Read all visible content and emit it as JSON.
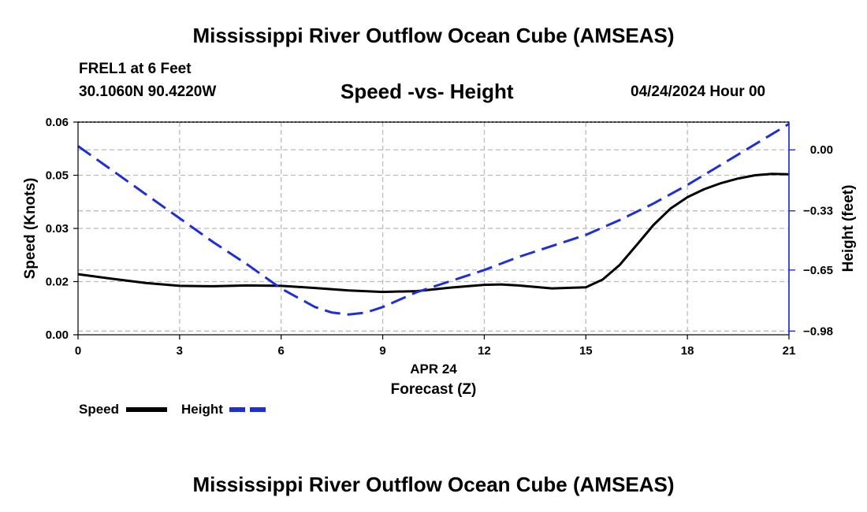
{
  "header": {
    "title": "Mississippi River Outflow Ocean Cube (AMSEAS)",
    "station": "FREL1 at 6 Feet",
    "coordinates": "30.1060N  90.4220W",
    "subtitle": "Speed -vs- Height",
    "datestamp": "04/24/2024 Hour 00"
  },
  "footer": {
    "title": "Mississippi River Outflow Ocean Cube (AMSEAS)"
  },
  "chart_data": {
    "type": "line",
    "title": "Speed -vs- Height",
    "xlabel": "Forecast (Z)",
    "xsublabel": "APR 24",
    "xlim": [
      0,
      21
    ],
    "xticks": [
      0,
      3,
      6,
      9,
      12,
      15,
      18,
      21
    ],
    "xtick_labels": [
      "0",
      "3",
      "6",
      "9",
      "12",
      "15",
      "18",
      "21"
    ],
    "grid": true,
    "legend_position": "bottom-left",
    "left_axis": {
      "label": "Speed (Knots)",
      "ylim": [
        0,
        0.06
      ],
      "ticks": [
        0.0,
        0.015,
        0.03,
        0.045,
        0.06
      ],
      "tick_labels": [
        "0.00",
        "0.02",
        "0.03",
        "0.05",
        "0.06"
      ]
    },
    "right_axis": {
      "label": "Height (feet)",
      "ylim": [
        -1.0,
        0.15
      ],
      "ticks": [
        0.0,
        -0.33,
        -0.65,
        -0.98
      ],
      "tick_labels": [
        "0.00",
        "−0.33",
        "−0.65",
        "−0.98"
      ]
    },
    "series": [
      {
        "name": "Speed",
        "axis": "left",
        "color": "#000000",
        "style": "solid",
        "x": [
          0,
          1,
          2,
          3,
          4,
          5,
          6,
          7,
          8,
          9,
          10,
          11,
          12,
          12.5,
          13,
          14,
          15,
          15.5,
          16,
          16.5,
          17,
          17.5,
          18,
          18.5,
          19,
          19.5,
          20,
          20.5,
          21
        ],
        "values": [
          0.0171,
          0.0158,
          0.0146,
          0.0138,
          0.0137,
          0.0139,
          0.0138,
          0.0132,
          0.0125,
          0.0121,
          0.0123,
          0.0133,
          0.0141,
          0.0142,
          0.0139,
          0.0131,
          0.0134,
          0.0156,
          0.0197,
          0.0253,
          0.031,
          0.0356,
          0.0388,
          0.0411,
          0.0428,
          0.0441,
          0.045,
          0.0454,
          0.0453
        ]
      },
      {
        "name": "Height",
        "axis": "right",
        "color": "#1f2fd6",
        "style": "dashed",
        "x": [
          0,
          1,
          2,
          3,
          4,
          5,
          6,
          7,
          7.5,
          8,
          8.5,
          9,
          10,
          11,
          12,
          13,
          14,
          15,
          16,
          17,
          18,
          19,
          20,
          21
        ],
        "values": [
          0.02,
          -0.11,
          -0.24,
          -0.37,
          -0.5,
          -0.62,
          -0.75,
          -0.85,
          -0.88,
          -0.89,
          -0.88,
          -0.85,
          -0.77,
          -0.71,
          -0.65,
          -0.58,
          -0.52,
          -0.46,
          -0.38,
          -0.29,
          -0.19,
          -0.08,
          0.03,
          0.14
        ]
      }
    ]
  }
}
